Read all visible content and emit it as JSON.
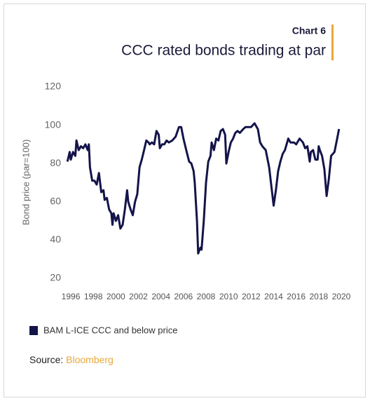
{
  "chart_data": {
    "type": "line",
    "label": "Chart 6",
    "title": "CCC rated bonds trading at par",
    "y_label": "Bond price (par=100)",
    "source_label": "Source:",
    "source": "Bloomberg",
    "x": [
      1995.7,
      1995.9,
      1996.0,
      1996.2,
      1996.4,
      1996.5,
      1996.7,
      1996.9,
      1997.1,
      1997.3,
      1997.5,
      1997.6,
      1997.7,
      1997.9,
      1998.1,
      1998.3,
      1998.5,
      1998.7,
      1998.9,
      1999.0,
      1999.2,
      1999.4,
      1999.6,
      1999.7,
      1999.8,
      2000.0,
      2000.2,
      2000.4,
      2000.6,
      2000.8,
      2001.0,
      2001.1,
      2001.3,
      2001.5,
      2001.7,
      2001.9,
      2002.1,
      2002.3,
      2002.5,
      2002.7,
      2002.9,
      2003.0,
      2003.2,
      2003.4,
      2003.6,
      2003.8,
      2003.9,
      2004.1,
      2004.3,
      2004.5,
      2004.7,
      2005.0,
      2005.3,
      2005.6,
      2005.8,
      2006.0,
      2006.2,
      2006.5,
      2006.7,
      2006.9,
      2007.0,
      2007.2,
      2007.3,
      2007.5,
      2007.6,
      2007.8,
      2008.0,
      2008.2,
      2008.4,
      2008.5,
      2008.7,
      2008.9,
      2009.1,
      2009.3,
      2009.5,
      2009.7,
      2009.8,
      2010.0,
      2010.2,
      2010.4,
      2010.6,
      2010.8,
      2011.0,
      2011.3,
      2011.5,
      2011.8,
      2012.0,
      2012.3,
      2012.6,
      2012.8,
      2013.0,
      2013.3,
      2013.6,
      2013.8,
      2014.0,
      2014.2,
      2014.4,
      2014.6,
      2014.8,
      2015.0,
      2015.3,
      2015.5,
      2015.8,
      2016.0,
      2016.3,
      2016.6,
      2016.8,
      2017.0,
      2017.2,
      2017.3,
      2017.5,
      2017.7,
      2017.9,
      2018.0,
      2018.1,
      2018.3,
      2018.5,
      2018.7,
      2018.9,
      2019.1,
      2019.4,
      2019.6,
      2019.8
    ],
    "series": [
      {
        "name": "BAM L-ICE CCC and below price",
        "color": "#14144a",
        "values": [
          81,
          86,
          82,
          86,
          84,
          92,
          87,
          89,
          88,
          90,
          87,
          90,
          78,
          71,
          71,
          69,
          75,
          65,
          66,
          61,
          62,
          56,
          54,
          48,
          54,
          50,
          53,
          46,
          48,
          56,
          66,
          60,
          56,
          53,
          60,
          64,
          78,
          82,
          87,
          92,
          91,
          90,
          91,
          90,
          97,
          95,
          88,
          90,
          90,
          92,
          91,
          92,
          94,
          99,
          99,
          93,
          88,
          81,
          80,
          76,
          70,
          50,
          33,
          36,
          35,
          50,
          70,
          81,
          84,
          91,
          87,
          93,
          92,
          97,
          98,
          95,
          80,
          86,
          91,
          93,
          96,
          97,
          96,
          98,
          99,
          99,
          99,
          101,
          98,
          91,
          89,
          87,
          78,
          68,
          58,
          66,
          76,
          81,
          85,
          87,
          93,
          91,
          91,
          90,
          93,
          91,
          88,
          89,
          81,
          86,
          87,
          82,
          82,
          89,
          87,
          84,
          77,
          63,
          72,
          84,
          86,
          92,
          98
        ]
      }
    ],
    "xlim": [
      1995.6,
      2020.2
    ],
    "xticks": [
      1996,
      1998,
      2000,
      2002,
      2004,
      2006,
      2008,
      2010,
      2012,
      2014,
      2016,
      2018,
      2020
    ],
    "ylim": [
      20,
      120
    ],
    "yticks": [
      20,
      40,
      60,
      80,
      100,
      120
    ],
    "grid": false
  }
}
